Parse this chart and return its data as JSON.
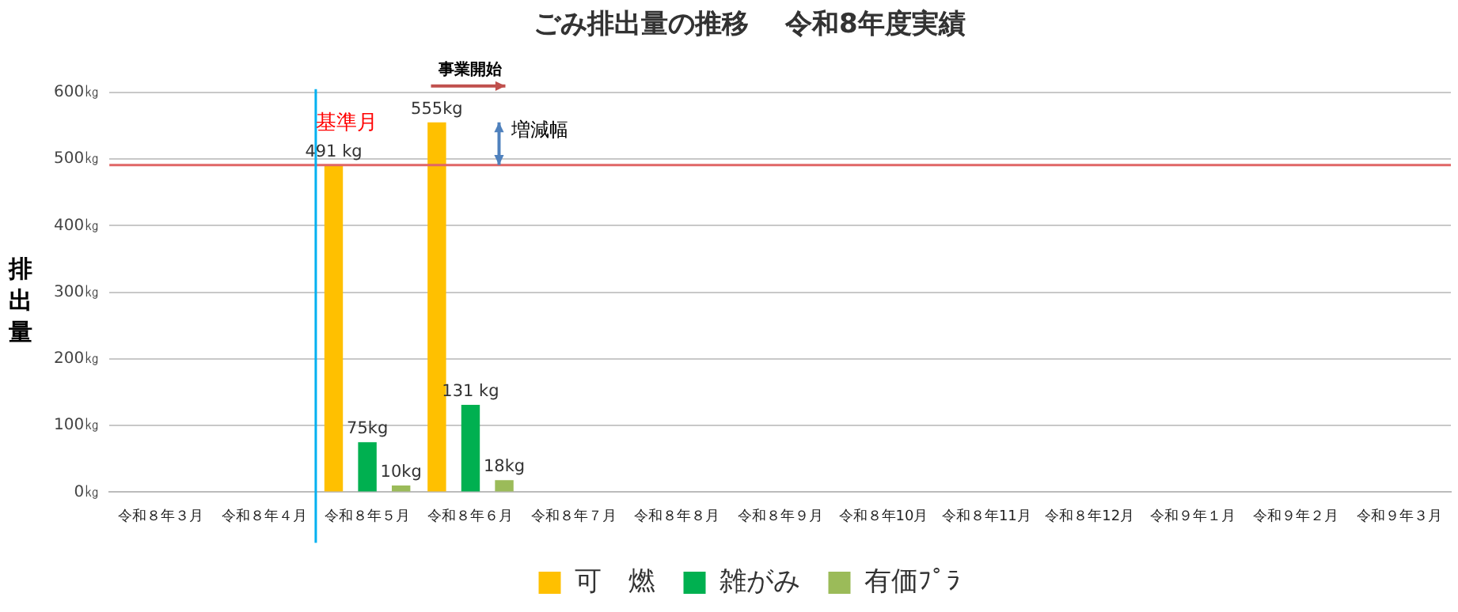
{
  "chart_data": {
    "type": "bar",
    "title": "ごみ排出量の推移　 令和8年度実績",
    "ylabel": "排出量",
    "categories": [
      "令和８年３月",
      "令和８年４月",
      "令和８年５月",
      "令和８年６月",
      "令和８年７月",
      "令和８年８月",
      "令和８年９月",
      "令和８年10月",
      "令和８年11月",
      "令和８年12月",
      "令和９年１月",
      "令和９年２月",
      "令和９年３月"
    ],
    "series": [
      {
        "name": "可　燃",
        "color": "#ffc000",
        "values": [
          null,
          null,
          491,
          555,
          null,
          null,
          null,
          null,
          null,
          null,
          null,
          null,
          null
        ],
        "value_labels": [
          null,
          null,
          "491 kg",
          "555kg",
          null,
          null,
          null,
          null,
          null,
          null,
          null,
          null,
          null
        ]
      },
      {
        "name": "雑がみ",
        "color": "#00b050",
        "values": [
          null,
          null,
          75,
          131,
          null,
          null,
          null,
          null,
          null,
          null,
          null,
          null,
          null
        ],
        "value_labels": [
          null,
          null,
          "75kg",
          "131 kg",
          null,
          null,
          null,
          null,
          null,
          null,
          null,
          null,
          null
        ]
      },
      {
        "name": "有価ﾌﾟﾗ",
        "color": "#9bbb59",
        "values": [
          null,
          null,
          10,
          18,
          null,
          null,
          null,
          null,
          null,
          null,
          null,
          null,
          null
        ],
        "value_labels": [
          null,
          null,
          "10kg",
          "18kg",
          null,
          null,
          null,
          null,
          null,
          null,
          null,
          null,
          null
        ]
      }
    ],
    "ylim": [
      0,
      600
    ],
    "yticks": [
      {
        "value": 0,
        "label": "0㎏"
      },
      {
        "value": 100,
        "label": "100㎏"
      },
      {
        "value": 200,
        "label": "200㎏"
      },
      {
        "value": 300,
        "label": "300㎏"
      },
      {
        "value": 400,
        "label": "400㎏"
      },
      {
        "value": 500,
        "label": "500㎏"
      },
      {
        "value": 600,
        "label": "600㎏"
      }
    ],
    "ref_lines": [
      {
        "axis": "y",
        "value": 491,
        "color": "#e06666"
      },
      {
        "axis": "x",
        "value": "令和８年５月",
        "label": "基準月",
        "color": "#00b0f0"
      }
    ],
    "annotations": [
      "事業開始",
      "増減幅"
    ],
    "grid": "y",
    "legend": "bottom"
  }
}
